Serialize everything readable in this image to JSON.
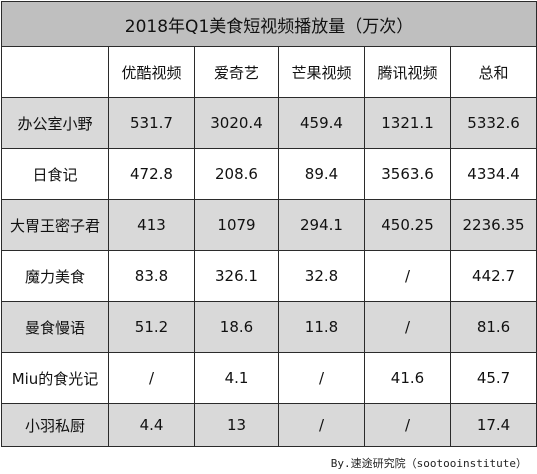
{
  "chart_data": {
    "type": "table",
    "title": "2018年Q1美食短视频播放量（万次）",
    "columns": [
      "",
      "优酷视频",
      "爱奇艺",
      "芒果视频",
      "腾讯视频",
      "总和"
    ],
    "rows": [
      {
        "name": "办公室小野",
        "cells": [
          "531.7",
          "3020.4",
          "459.4",
          "1321.1",
          "5332.6"
        ]
      },
      {
        "name": "日食记",
        "cells": [
          "472.8",
          "208.6",
          "89.4",
          "3563.6",
          "4334.4"
        ]
      },
      {
        "name": "大胃王密子君",
        "cells": [
          "413",
          "1079",
          "294.1",
          "450.25",
          "2236.35"
        ]
      },
      {
        "name": "魔力美食",
        "cells": [
          "83.8",
          "326.1",
          "32.8",
          "/",
          "442.7"
        ]
      },
      {
        "name": "曼食慢语",
        "cells": [
          "51.2",
          "18.6",
          "11.8",
          "/",
          "81.6"
        ]
      },
      {
        "name": "Miu的食光记",
        "cells": [
          "/",
          "4.1",
          "/",
          "41.6",
          "45.7"
        ]
      },
      {
        "name": "小羽私厨",
        "cells": [
          "4.4",
          "13",
          "/",
          "/",
          "17.4"
        ]
      }
    ]
  },
  "footer": "By.速途研究院（sootooinstitute）",
  "colors": {
    "title_bg": "#bfbfbf",
    "shade_bg": "#d9d9d9",
    "plain_bg": "#ffffff",
    "border": "#2b2b2b"
  }
}
